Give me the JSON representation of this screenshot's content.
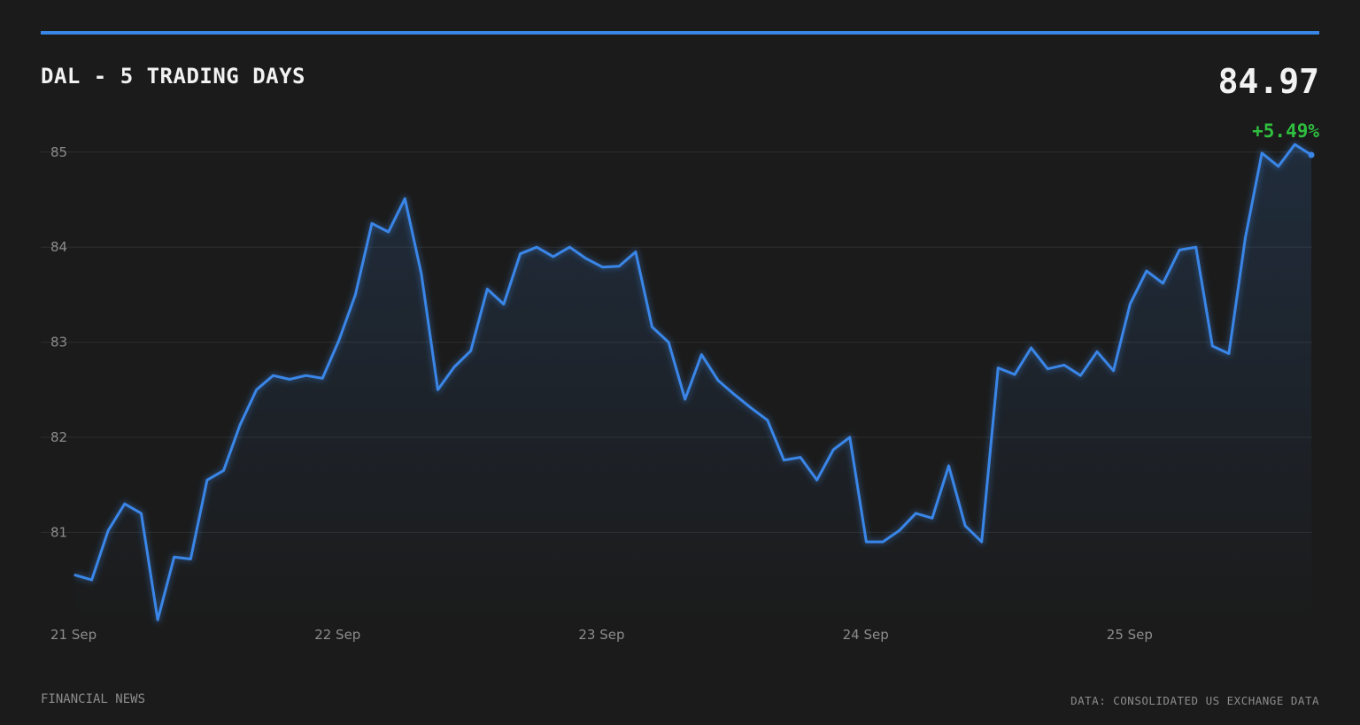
{
  "header": {
    "title": "DAL - 5 TRADING DAYS",
    "price": "84.97",
    "change": "+5.49%"
  },
  "footer": {
    "left": "FINANCIAL NEWS",
    "right": "DATA: CONSOLIDATED US EXCHANGE DATA"
  },
  "colors": {
    "background": "#1b1b1b",
    "accent": "#3a86e8",
    "positive": "#2fbf3f",
    "grid": "#2e2e2e",
    "muted_text": "#8c8c8c"
  },
  "chart_data": {
    "type": "area",
    "title": "DAL - 5 TRADING DAYS",
    "xlabel": "",
    "ylabel": "",
    "ylim": [
      80.0,
      85.35
    ],
    "yticks": [
      81,
      82,
      83,
      84,
      85
    ],
    "x_tick_labels": [
      "21 Sep",
      "22 Sep",
      "23 Sep",
      "24 Sep",
      "25 Sep"
    ],
    "grid": true,
    "series": [
      {
        "values": [
          80.55,
          80.5,
          81.02,
          81.3,
          81.2,
          80.08,
          80.74,
          80.72,
          81.55,
          81.65,
          82.13,
          82.5,
          82.65,
          82.61,
          82.65,
          82.62,
          83.02,
          83.5,
          84.25,
          84.16,
          84.51,
          83.72,
          82.5,
          82.74,
          82.91,
          83.56,
          83.4,
          83.93,
          84.0,
          83.9,
          84.0,
          83.88,
          83.79,
          83.8,
          83.95,
          83.16,
          83.0,
          82.4,
          82.87,
          82.6,
          82.45,
          82.31,
          82.18,
          81.76,
          81.79,
          81.55,
          81.87,
          82.0,
          80.9,
          80.9,
          81.02,
          81.2,
          81.15,
          81.7,
          81.07,
          80.9,
          82.73,
          82.66,
          82.94,
          82.72,
          82.76,
          82.65,
          82.9,
          82.7,
          83.4,
          83.75,
          83.62,
          83.97,
          84.0,
          82.96,
          82.88,
          84.1,
          84.99,
          84.85,
          85.08,
          84.97
        ]
      }
    ]
  }
}
